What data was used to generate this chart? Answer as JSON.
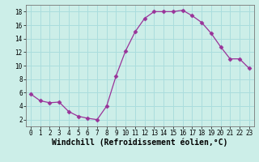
{
  "x": [
    0,
    1,
    2,
    3,
    4,
    5,
    6,
    7,
    8,
    9,
    10,
    11,
    12,
    13,
    14,
    15,
    16,
    17,
    18,
    19,
    20,
    21,
    22,
    23
  ],
  "y": [
    5.8,
    4.8,
    4.5,
    4.6,
    3.2,
    2.5,
    2.2,
    2.0,
    4.0,
    8.5,
    12.2,
    15.0,
    17.0,
    18.0,
    18.0,
    18.0,
    18.2,
    17.4,
    16.4,
    14.8,
    12.8,
    11.0,
    11.0,
    9.6
  ],
  "line_color": "#993399",
  "marker": "D",
  "markersize": 2.5,
  "linewidth": 0.9,
  "xlabel": "Windchill (Refroidissement éolien,°C)",
  "xlabel_fontsize": 7,
  "xlim": [
    -0.5,
    23.5
  ],
  "ylim": [
    1.0,
    19.0
  ],
  "yticks": [
    2,
    4,
    6,
    8,
    10,
    12,
    14,
    16,
    18
  ],
  "xticks": [
    0,
    1,
    2,
    3,
    4,
    5,
    6,
    7,
    8,
    9,
    10,
    11,
    12,
    13,
    14,
    15,
    16,
    17,
    18,
    19,
    20,
    21,
    22,
    23
  ],
  "grid_color": "#aadddd",
  "bg_color": "#cceee8",
  "tick_fontsize": 5.5,
  "spine_color": "#777777"
}
